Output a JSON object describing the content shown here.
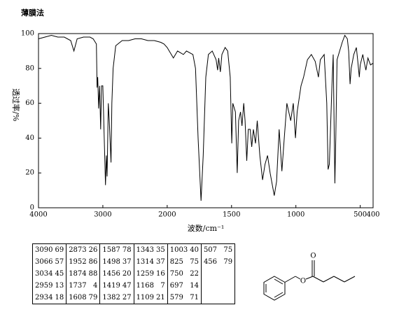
{
  "chart_data": {
    "type": "line",
    "title": "薄膜法",
    "xlabel": "波数/cm⁻¹",
    "ylabel": "透过率/%",
    "xlim": [
      4000,
      400
    ],
    "x_scale_break": 2000,
    "ylim": [
      0,
      100
    ],
    "xticks": [
      4000,
      3000,
      2000,
      1500,
      1000,
      500,
      400
    ],
    "yticks": [
      0,
      20,
      40,
      60,
      80,
      100
    ],
    "color": "#000000",
    "x": [
      4000,
      3900,
      3800,
      3700,
      3600,
      3500,
      3450,
      3400,
      3300,
      3200,
      3150,
      3100,
      3090,
      3080,
      3066,
      3050,
      3034,
      3020,
      3000,
      2959,
      2945,
      2934,
      2915,
      2900,
      2873,
      2860,
      2840,
      2800,
      2700,
      2600,
      2500,
      2400,
      2300,
      2200,
      2100,
      2050,
      2000,
      1952,
      1920,
      1874,
      1850,
      1800,
      1780,
      1760,
      1737,
      1720,
      1700,
      1680,
      1650,
      1620,
      1608,
      1600,
      1587,
      1575,
      1550,
      1530,
      1510,
      1498,
      1490,
      1470,
      1456,
      1445,
      1430,
      1419,
      1405,
      1395,
      1382,
      1370,
      1355,
      1343,
      1330,
      1314,
      1300,
      1280,
      1259,
      1240,
      1220,
      1200,
      1168,
      1150,
      1130,
      1109,
      1090,
      1070,
      1040,
      1020,
      1003,
      990,
      960,
      940,
      910,
      880,
      850,
      825,
      810,
      780,
      760,
      750,
      740,
      720,
      710,
      697,
      690,
      680,
      660,
      640,
      620,
      600,
      590,
      579,
      570,
      550,
      530,
      520,
      507,
      500,
      480,
      470,
      456,
      440,
      420,
      400
    ],
    "values": [
      97,
      98,
      99,
      98,
      98,
      96,
      90,
      97,
      98,
      98,
      97,
      94,
      69,
      75,
      57,
      70,
      45,
      70,
      70,
      13,
      30,
      18,
      60,
      50,
      26,
      60,
      80,
      93,
      96,
      96,
      97,
      97,
      96,
      96,
      95,
      94,
      92,
      86,
      90,
      88,
      90,
      88,
      80,
      40,
      4,
      30,
      75,
      88,
      90,
      85,
      79,
      86,
      78,
      88,
      92,
      90,
      75,
      37,
      60,
      55,
      20,
      50,
      55,
      47,
      60,
      50,
      27,
      45,
      45,
      35,
      45,
      37,
      50,
      30,
      16,
      25,
      30,
      20,
      7,
      15,
      45,
      21,
      40,
      60,
      50,
      60,
      40,
      55,
      70,
      75,
      85,
      88,
      84,
      75,
      85,
      88,
      60,
      22,
      25,
      70,
      88,
      14,
      40,
      85,
      90,
      95,
      99,
      97,
      90,
      71,
      80,
      88,
      92,
      85,
      75,
      82,
      88,
      84,
      79,
      86,
      82,
      83
    ]
  },
  "peak_table": [
    [
      [
        3090,
        69
      ],
      [
        3066,
        57
      ],
      [
        3034,
        45
      ],
      [
        2959,
        13
      ],
      [
        2934,
        18
      ]
    ],
    [
      [
        2873,
        26
      ],
      [
        1952,
        86
      ],
      [
        1874,
        88
      ],
      [
        1737,
        4
      ],
      [
        1608,
        79
      ]
    ],
    [
      [
        1587,
        78
      ],
      [
        1498,
        37
      ],
      [
        1456,
        20
      ],
      [
        1419,
        47
      ],
      [
        1382,
        27
      ]
    ],
    [
      [
        1343,
        35
      ],
      [
        1314,
        37
      ],
      [
        1259,
        16
      ],
      [
        1168,
        7
      ],
      [
        1109,
        21
      ]
    ],
    [
      [
        1003,
        40
      ],
      [
        825,
        75
      ],
      [
        750,
        22
      ],
      [
        697,
        14
      ],
      [
        579,
        71
      ]
    ],
    [
      [
        507,
        75
      ],
      [
        456,
        79
      ]
    ]
  ],
  "structure": {
    "atoms": [
      "O",
      "O"
    ]
  }
}
